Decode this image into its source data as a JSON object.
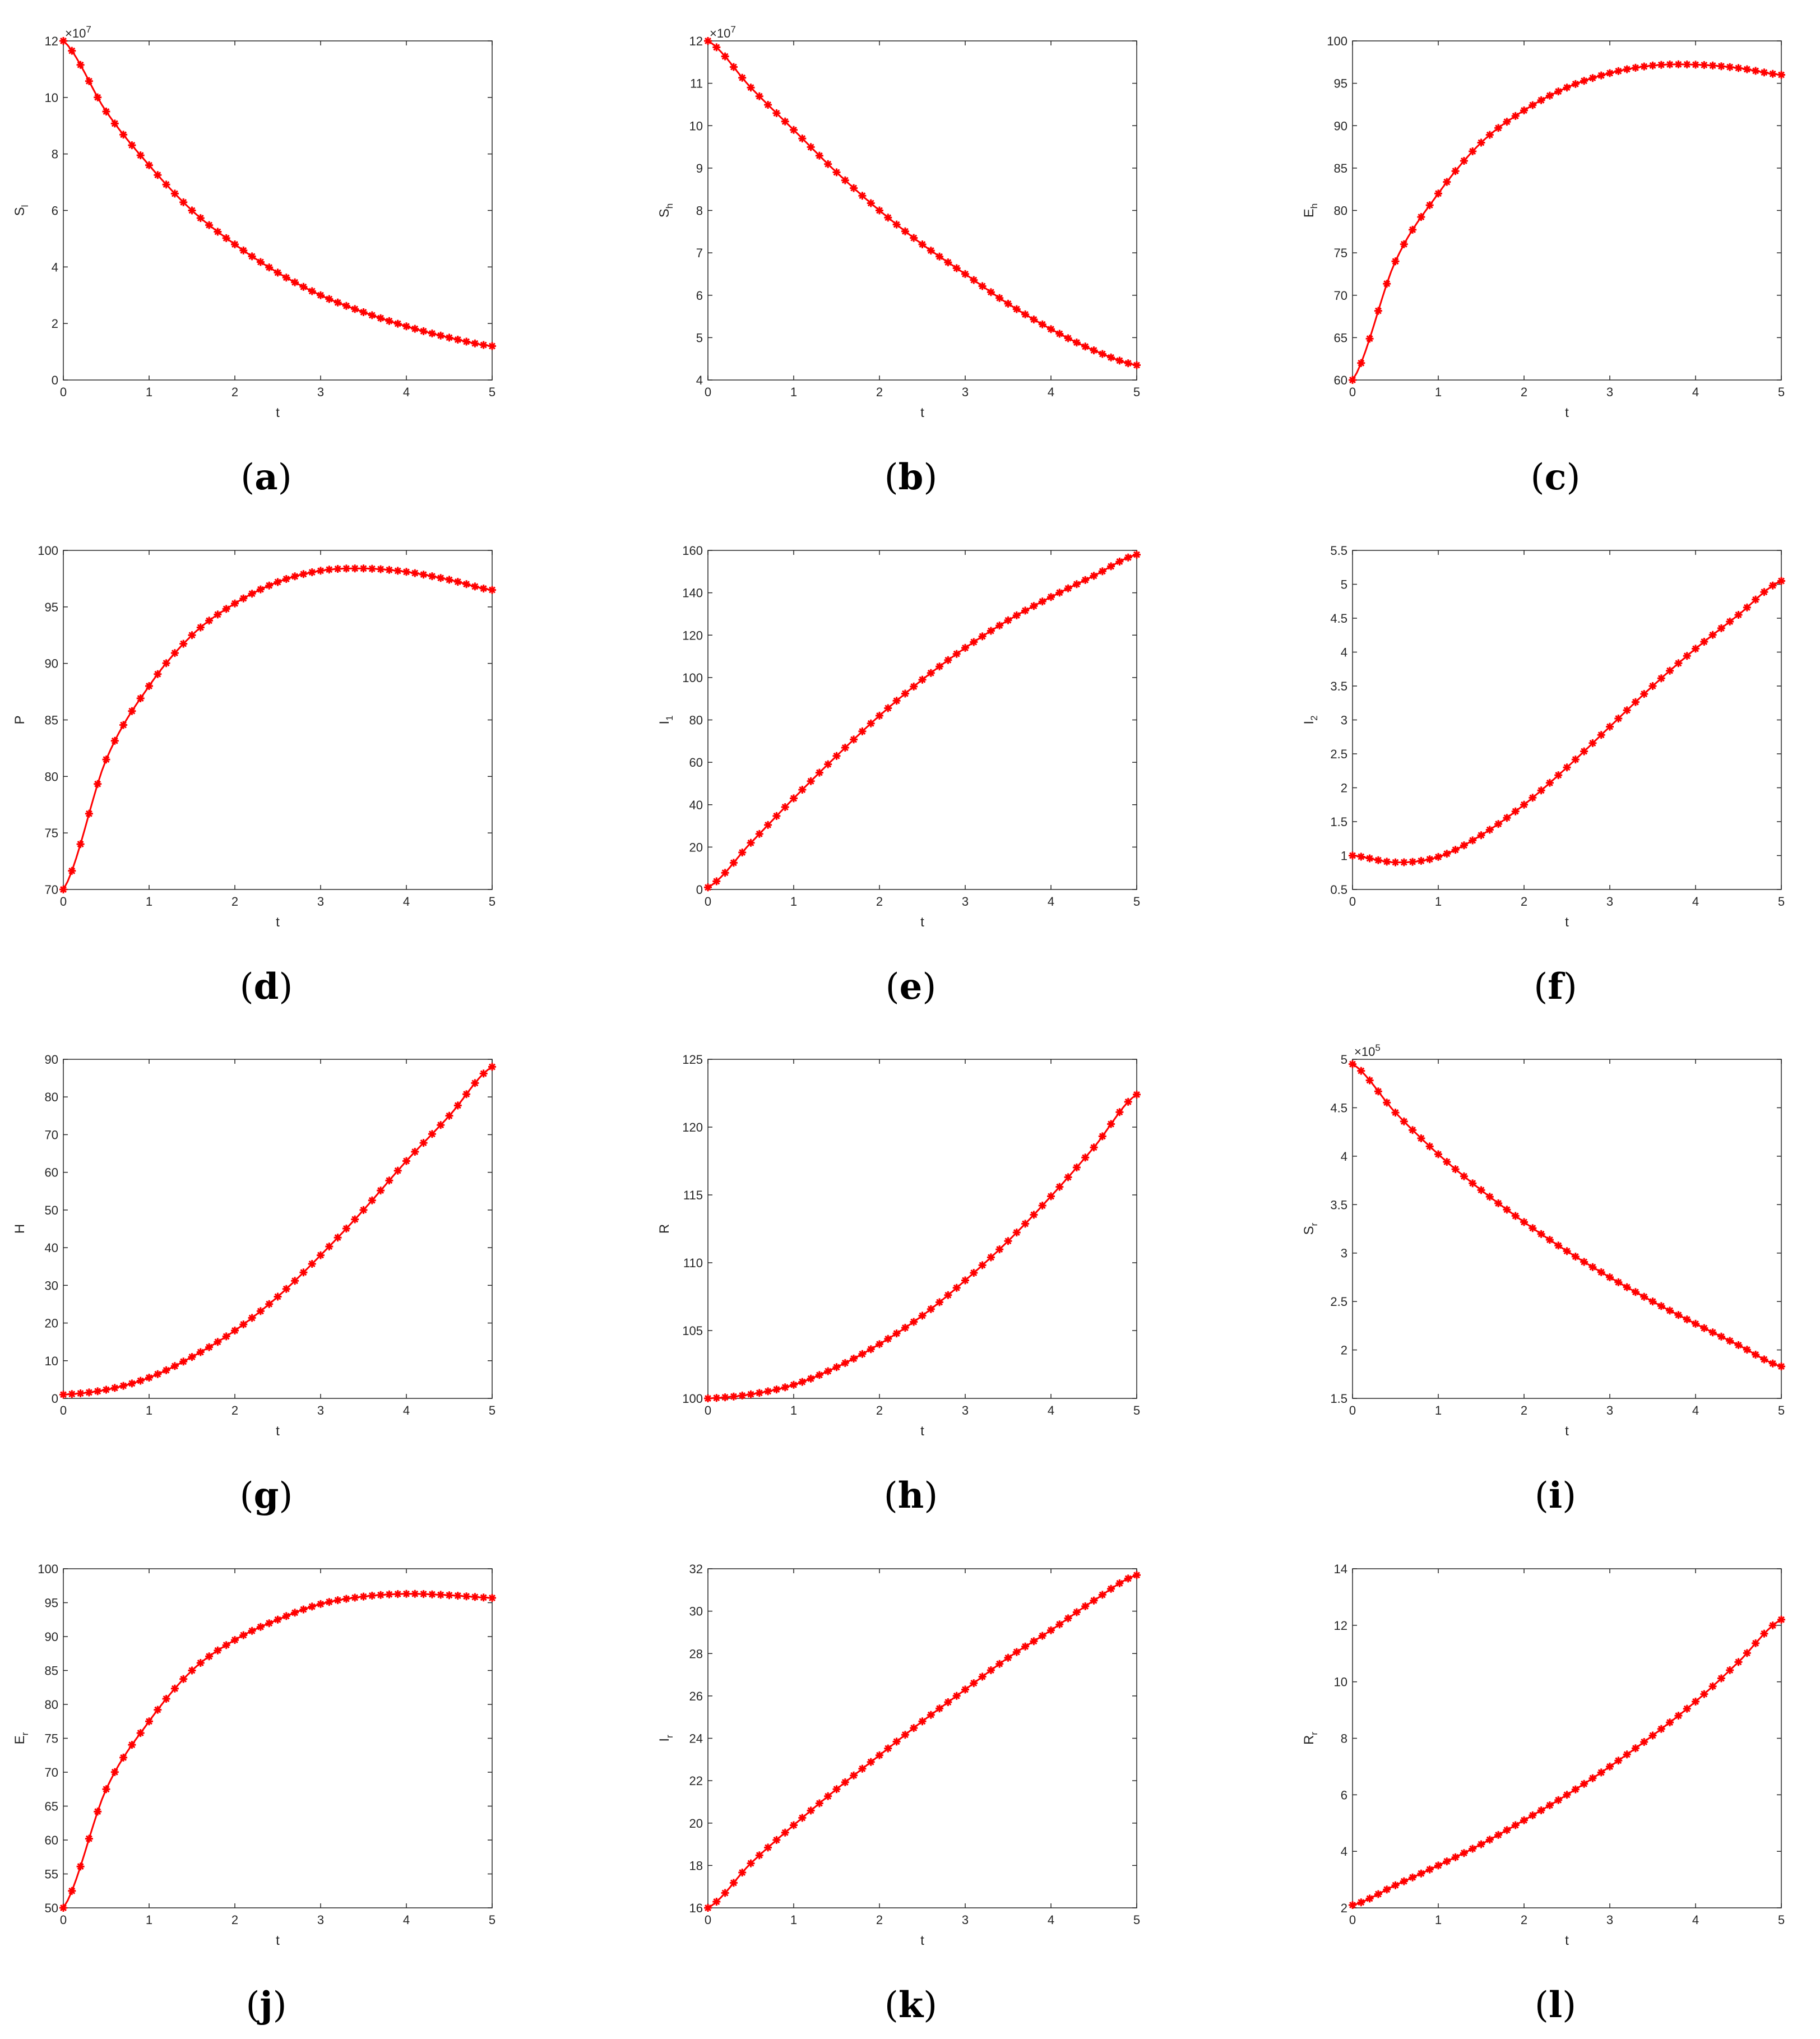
{
  "chart_data": [
    {
      "id": "a",
      "type": "line",
      "caption": "a",
      "xlabel": "t",
      "ylabel": "S",
      "ylabel_sub": "l",
      "xlim": [
        0,
        5
      ],
      "ylim": [
        0,
        12
      ],
      "xticks": [
        "0",
        "1",
        "2",
        "3",
        "4",
        "5"
      ],
      "yticks": [
        "0",
        "2",
        "4",
        "6",
        "8",
        "10",
        "12"
      ],
      "exponent": "7",
      "series": [
        {
          "color": "#ff0000",
          "x": [
            0,
            0.5,
            1,
            1.5,
            2,
            2.5,
            3,
            3.5,
            4,
            4.5,
            5
          ],
          "y": [
            12,
            9.5,
            7.6,
            6.0,
            4.8,
            3.8,
            3.0,
            2.4,
            1.9,
            1.5,
            1.2
          ]
        }
      ]
    },
    {
      "id": "b",
      "type": "line",
      "caption": "b",
      "xlabel": "t",
      "ylabel": "S",
      "ylabel_sub": "h",
      "xlim": [
        0,
        5
      ],
      "ylim": [
        4,
        12
      ],
      "xticks": [
        "0",
        "1",
        "2",
        "3",
        "4",
        "5"
      ],
      "yticks": [
        "4",
        "5",
        "6",
        "7",
        "8",
        "9",
        "10",
        "11",
        "12"
      ],
      "exponent": "7",
      "series": [
        {
          "color": "#ff0000",
          "x": [
            0,
            0.5,
            1,
            1.5,
            2,
            2.5,
            3,
            3.5,
            4,
            4.5,
            5
          ],
          "y": [
            12,
            10.9,
            9.9,
            8.9,
            8.0,
            7.2,
            6.5,
            5.8,
            5.2,
            4.7,
            4.35
          ]
        }
      ]
    },
    {
      "id": "c",
      "type": "line",
      "caption": "c",
      "xlabel": "t",
      "ylabel": "E",
      "ylabel_sub": "h",
      "xlim": [
        0,
        5
      ],
      "ylim": [
        60,
        100
      ],
      "xticks": [
        "0",
        "1",
        "2",
        "3",
        "4",
        "5"
      ],
      "yticks": [
        "60",
        "65",
        "70",
        "75",
        "80",
        "85",
        "90",
        "95",
        "100"
      ],
      "exponent": "",
      "series": [
        {
          "color": "#ff0000",
          "x": [
            0,
            0.5,
            1,
            1.5,
            2,
            2.5,
            3,
            3.5,
            4,
            4.5,
            5
          ],
          "y": [
            60,
            74,
            82,
            88,
            91.8,
            94.5,
            96.2,
            97.1,
            97.2,
            96.8,
            96.0
          ]
        }
      ]
    },
    {
      "id": "d",
      "type": "line",
      "caption": "d",
      "xlabel": "t",
      "ylabel": "P",
      "ylabel_sub": "",
      "xlim": [
        0,
        5
      ],
      "ylim": [
        70,
        100
      ],
      "xticks": [
        "0",
        "1",
        "2",
        "3",
        "4",
        "5"
      ],
      "yticks": [
        "70",
        "75",
        "80",
        "85",
        "90",
        "95",
        "100"
      ],
      "exponent": "",
      "series": [
        {
          "color": "#ff0000",
          "x": [
            0,
            0.5,
            1,
            1.5,
            2,
            2.5,
            3,
            3.5,
            4,
            4.5,
            5
          ],
          "y": [
            70,
            81.5,
            88,
            92.5,
            95.3,
            97.2,
            98.2,
            98.4,
            98.1,
            97.4,
            96.5
          ]
        }
      ]
    },
    {
      "id": "e",
      "type": "line",
      "caption": "e",
      "xlabel": "t",
      "ylabel": "I",
      "ylabel_sub": "1",
      "xlim": [
        0,
        5
      ],
      "ylim": [
        0,
        160
      ],
      "xticks": [
        "0",
        "1",
        "2",
        "3",
        "4",
        "5"
      ],
      "yticks": [
        "0",
        "20",
        "40",
        "60",
        "80",
        "100",
        "120",
        "140",
        "160"
      ],
      "exponent": "",
      "series": [
        {
          "color": "#ff0000",
          "x": [
            0,
            0.5,
            1,
            1.5,
            2,
            2.5,
            3,
            3.5,
            4,
            4.5,
            5
          ],
          "y": [
            1,
            22,
            43,
            63,
            82,
            99,
            114,
            127,
            138,
            148,
            158
          ]
        }
      ]
    },
    {
      "id": "f",
      "type": "line",
      "caption": "f",
      "xlabel": "t",
      "ylabel": "I",
      "ylabel_sub": "2",
      "xlim": [
        0,
        5
      ],
      "ylim": [
        0.5,
        5.5
      ],
      "xticks": [
        "0",
        "1",
        "2",
        "3",
        "4",
        "5"
      ],
      "yticks": [
        "0.5",
        "1",
        "1.5",
        "2",
        "2.5",
        "3",
        "3.5",
        "4",
        "4.5",
        "5",
        "5.5"
      ],
      "exponent": "",
      "series": [
        {
          "color": "#ff0000",
          "x": [
            0,
            0.5,
            1,
            1.5,
            2,
            2.5,
            3,
            3.5,
            4,
            4.5,
            5
          ],
          "y": [
            1.0,
            0.9,
            0.98,
            1.3,
            1.75,
            2.3,
            2.9,
            3.5,
            4.05,
            4.55,
            5.05
          ]
        }
      ]
    },
    {
      "id": "g",
      "type": "line",
      "caption": "g",
      "xlabel": "t",
      "ylabel": "H",
      "ylabel_sub": "",
      "xlim": [
        0,
        5
      ],
      "ylim": [
        0,
        90
      ],
      "xticks": [
        "0",
        "1",
        "2",
        "3",
        "4",
        "5"
      ],
      "yticks": [
        "0",
        "10",
        "20",
        "30",
        "40",
        "50",
        "60",
        "70",
        "80",
        "90"
      ],
      "exponent": "",
      "series": [
        {
          "color": "#ff0000",
          "x": [
            0,
            0.5,
            1,
            1.5,
            2,
            2.5,
            3,
            3.5,
            4,
            4.5,
            5
          ],
          "y": [
            1,
            2.3,
            5.5,
            11,
            18,
            27,
            38,
            50,
            63,
            75,
            88
          ]
        }
      ]
    },
    {
      "id": "h",
      "type": "line",
      "caption": "h",
      "xlabel": "t",
      "ylabel": "R",
      "ylabel_sub": "",
      "xlim": [
        0,
        5
      ],
      "ylim": [
        100,
        125
      ],
      "xticks": [
        "0",
        "1",
        "2",
        "3",
        "4",
        "5"
      ],
      "yticks": [
        "100",
        "105",
        "110",
        "115",
        "120",
        "125"
      ],
      "exponent": "",
      "series": [
        {
          "color": "#ff0000",
          "x": [
            0,
            0.5,
            1,
            1.5,
            2,
            2.5,
            3,
            3.5,
            4,
            4.5,
            5
          ],
          "y": [
            100,
            100.3,
            101,
            102.3,
            104,
            106.1,
            108.7,
            111.6,
            114.9,
            118.5,
            122.4
          ]
        }
      ]
    },
    {
      "id": "i",
      "type": "line",
      "caption": "i",
      "xlabel": "t",
      "ylabel": "S",
      "ylabel_sub": "r",
      "xlim": [
        0,
        5
      ],
      "ylim": [
        1.5,
        5
      ],
      "xticks": [
        "0",
        "1",
        "2",
        "3",
        "4",
        "5"
      ],
      "yticks": [
        "1.5",
        "2",
        "2.5",
        "3",
        "3.5",
        "4",
        "4.5",
        "5"
      ],
      "exponent": "5",
      "series": [
        {
          "color": "#ff0000",
          "x": [
            0,
            0.5,
            1,
            1.5,
            2,
            2.5,
            3,
            3.5,
            4,
            4.5,
            5
          ],
          "y": [
            4.95,
            4.45,
            4.02,
            3.65,
            3.32,
            3.02,
            2.75,
            2.5,
            2.27,
            2.05,
            1.83
          ]
        }
      ]
    },
    {
      "id": "j",
      "type": "line",
      "caption": "j",
      "xlabel": "t",
      "ylabel": "E",
      "ylabel_sub": "r",
      "xlim": [
        0,
        5
      ],
      "ylim": [
        50,
        100
      ],
      "xticks": [
        "0",
        "1",
        "2",
        "3",
        "4",
        "5"
      ],
      "yticks": [
        "50",
        "55",
        "60",
        "65",
        "70",
        "75",
        "80",
        "85",
        "90",
        "95",
        "100"
      ],
      "exponent": "",
      "series": [
        {
          "color": "#ff0000",
          "x": [
            0,
            0.5,
            1,
            1.5,
            2,
            2.5,
            3,
            3.5,
            4,
            4.5,
            5
          ],
          "y": [
            50,
            67.5,
            77.5,
            85,
            89.5,
            92.5,
            94.8,
            95.9,
            96.3,
            96.1,
            95.7
          ]
        }
      ]
    },
    {
      "id": "k",
      "type": "line",
      "caption": "k",
      "xlabel": "t",
      "ylabel": "I",
      "ylabel_sub": "r",
      "xlim": [
        0,
        5
      ],
      "ylim": [
        16,
        32
      ],
      "xticks": [
        "0",
        "1",
        "2",
        "3",
        "4",
        "5"
      ],
      "yticks": [
        "16",
        "18",
        "20",
        "22",
        "24",
        "26",
        "28",
        "30",
        "32"
      ],
      "exponent": "",
      "series": [
        {
          "color": "#ff0000",
          "x": [
            0,
            0.5,
            1,
            1.5,
            2,
            2.5,
            3,
            3.5,
            4,
            4.5,
            5
          ],
          "y": [
            16,
            18.1,
            19.9,
            21.6,
            23.2,
            24.8,
            26.3,
            27.8,
            29.1,
            30.5,
            31.7
          ]
        }
      ]
    },
    {
      "id": "l",
      "type": "line",
      "caption": "l",
      "xlabel": "t",
      "ylabel": "R",
      "ylabel_sub": "r",
      "xlim": [
        0,
        5
      ],
      "ylim": [
        2,
        14
      ],
      "xticks": [
        "0",
        "1",
        "2",
        "3",
        "4",
        "5"
      ],
      "yticks": [
        "2",
        "4",
        "6",
        "8",
        "10",
        "12",
        "14"
      ],
      "exponent": "",
      "series": [
        {
          "color": "#ff0000",
          "x": [
            0,
            0.5,
            1,
            1.5,
            2,
            2.5,
            3,
            3.5,
            4,
            4.5,
            5
          ],
          "y": [
            2.1,
            2.8,
            3.5,
            4.25,
            5.1,
            6.0,
            7.0,
            8.1,
            9.3,
            10.7,
            12.2
          ]
        }
      ]
    }
  ]
}
